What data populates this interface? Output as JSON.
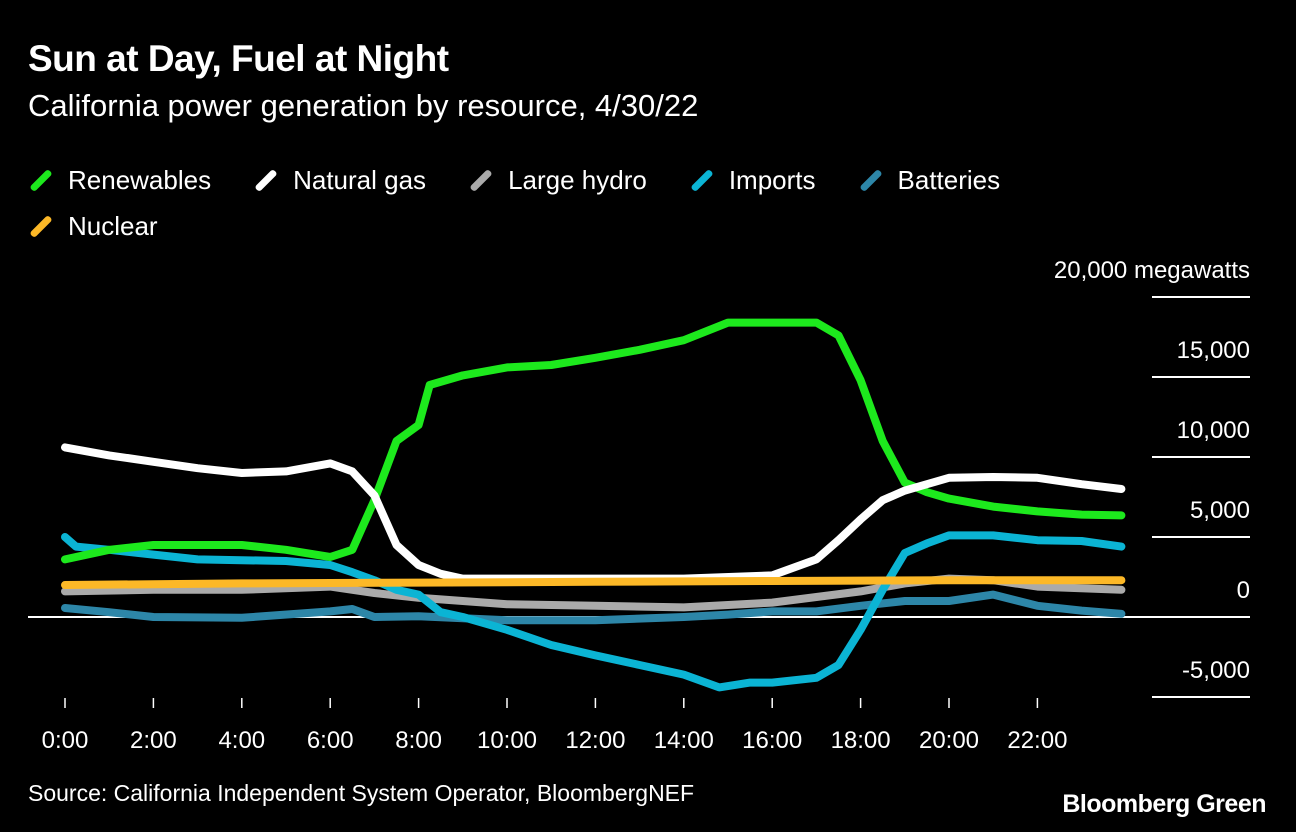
{
  "title": "Sun at Day, Fuel at Night",
  "subtitle": "California power generation by resource, 4/30/22",
  "source": "Source: California Independent System Operator, BloombergNEF",
  "logo": "Bloomberg Green",
  "chart_data": {
    "type": "line",
    "title": "Sun at Day, Fuel at Night",
    "subtitle": "California power generation by resource, 4/30/22",
    "yunit_label": "20,000 megawatts",
    "ylim": [
      -5000,
      20000
    ],
    "y_ticks": [
      20000,
      15000,
      10000,
      5000,
      0,
      -5000
    ],
    "y_tick_labels": [
      "20,000 megawatts",
      "15,000",
      "10,000",
      "5,000",
      "0",
      "-5,000"
    ],
    "x_ticks": [
      0,
      2,
      4,
      6,
      8,
      10,
      12,
      14,
      16,
      18,
      20,
      22
    ],
    "x_tick_labels": [
      "0:00",
      "2:00",
      "4:00",
      "6:00",
      "8:00",
      "10:00",
      "12:00",
      "14:00",
      "16:00",
      "18:00",
      "20:00",
      "22:00"
    ],
    "xlim": [
      0,
      24
    ],
    "legend_position": "top-left",
    "grid": "horizontal lines at right",
    "series": [
      {
        "name": "Renewables",
        "color": "#1de91d",
        "x": [
          0,
          1,
          2,
          3,
          4,
          5,
          6,
          6.5,
          7,
          7.5,
          8,
          8.25,
          9,
          10,
          11,
          12,
          13,
          14,
          15,
          16,
          17,
          17.5,
          18,
          18.5,
          19,
          19.5,
          20,
          21,
          22,
          23,
          23.9
        ],
        "values": [
          3600,
          4200,
          4500,
          4500,
          4500,
          4200,
          3750,
          4200,
          7300,
          11000,
          12000,
          14500,
          15100,
          15600,
          15750,
          16200,
          16700,
          17300,
          18400,
          18400,
          18400,
          17600,
          14800,
          11000,
          8400,
          7800,
          7400,
          6900,
          6600,
          6400,
          6350
        ]
      },
      {
        "name": "Natural gas",
        "color": "#ffffff",
        "x": [
          0,
          1,
          2,
          3,
          4,
          5,
          6,
          6.5,
          7,
          7.5,
          8,
          8.5,
          9,
          10,
          12,
          14,
          16,
          17,
          17.5,
          18,
          18.5,
          19,
          19.5,
          20,
          21,
          22,
          23,
          23.9
        ],
        "values": [
          10600,
          10100,
          9700,
          9300,
          9000,
          9100,
          9600,
          9100,
          7600,
          4500,
          3250,
          2700,
          2400,
          2400,
          2400,
          2400,
          2600,
          3600,
          4800,
          6100,
          7300,
          7900,
          8300,
          8700,
          8750,
          8700,
          8300,
          8000
        ]
      },
      {
        "name": "Large hydro",
        "color": "#aaaaaa",
        "x": [
          0,
          2,
          4,
          6,
          7,
          8,
          10,
          12,
          14,
          16,
          18,
          19,
          20,
          21,
          22,
          23.9
        ],
        "values": [
          1600,
          1700,
          1700,
          1900,
          1500,
          1200,
          800,
          700,
          600,
          900,
          1600,
          2100,
          2400,
          2300,
          1900,
          1700
        ]
      },
      {
        "name": "Imports",
        "color": "#0bb4d4",
        "x": [
          0,
          0.25,
          1,
          2,
          3,
          4,
          5,
          6,
          6.5,
          7,
          7.5,
          8,
          8.5,
          9,
          10,
          11,
          12,
          13,
          14,
          14.8,
          15.5,
          16,
          17,
          17.5,
          18,
          18.5,
          19,
          19.5,
          20,
          21,
          22,
          23,
          23.9
        ],
        "values": [
          5000,
          4400,
          4200,
          3900,
          3600,
          3550,
          3500,
          3250,
          2800,
          2300,
          1700,
          1400,
          300,
          0,
          -800,
          -1750,
          -2400,
          -3000,
          -3600,
          -4400,
          -4100,
          -4100,
          -3800,
          -3000,
          -800,
          1700,
          4000,
          4600,
          5100,
          5100,
          4800,
          4750,
          4400
        ]
      },
      {
        "name": "Batteries",
        "color": "#2d86a8",
        "x": [
          0,
          1,
          2,
          4,
          6,
          6.5,
          7,
          8,
          10,
          12,
          14,
          15,
          16,
          17,
          18,
          19,
          20,
          21,
          22,
          23,
          23.9
        ],
        "values": [
          560,
          300,
          0,
          -50,
          350,
          500,
          0,
          50,
          -200,
          -200,
          0,
          150,
          350,
          350,
          700,
          1000,
          1000,
          1400,
          700,
          400,
          200
        ]
      },
      {
        "name": "Nuclear",
        "color": "#fcb827",
        "x": [
          0,
          4,
          8,
          12,
          16,
          20,
          23.9
        ],
        "values": [
          2000,
          2100,
          2150,
          2200,
          2250,
          2300,
          2300
        ]
      }
    ]
  }
}
